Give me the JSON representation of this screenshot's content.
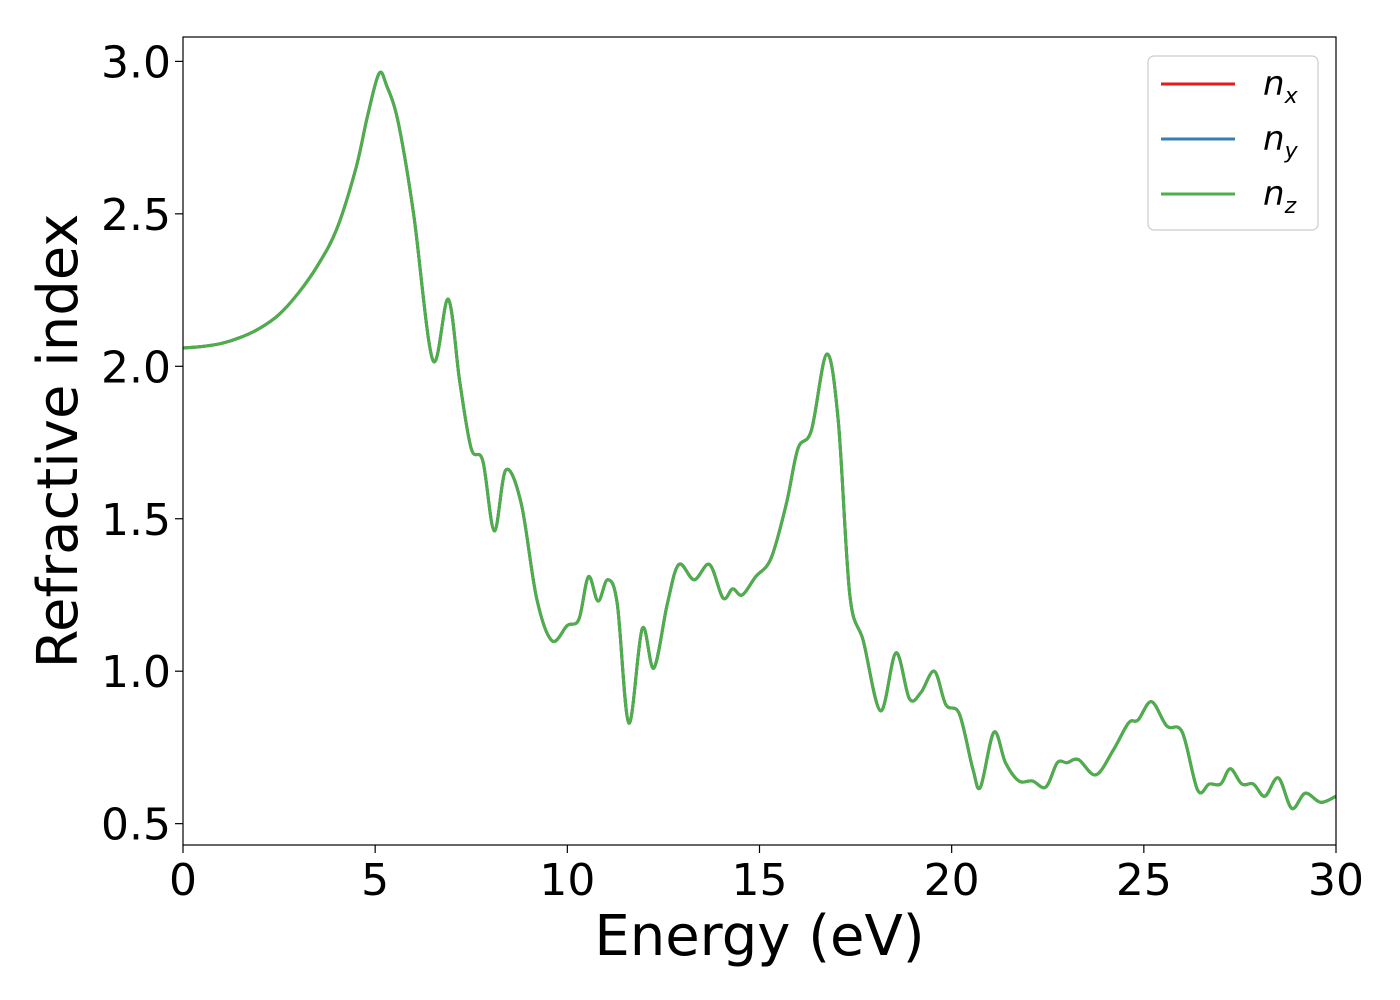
{
  "chart_data": {
    "type": "line",
    "title": "",
    "xlabel": "Energy (eV)",
    "ylabel": "Refractive index",
    "xlim": [
      0,
      30
    ],
    "ylim": [
      0.43,
      3.08
    ],
    "xticks": [
      0,
      5,
      10,
      15,
      20,
      25,
      30
    ],
    "xtick_labels": [
      "0",
      "5",
      "10",
      "15",
      "20",
      "25",
      "30"
    ],
    "yticks": [
      0.5,
      1.0,
      1.5,
      2.0,
      2.5,
      3.0
    ],
    "ytick_labels": [
      "0.5",
      "1.0",
      "1.5",
      "2.0",
      "2.5",
      "3.0"
    ],
    "grid": false,
    "legend_position": "top-right",
    "x": [
      0,
      0.5,
      1,
      1.5,
      2,
      2.5,
      3,
      3.5,
      4,
      4.5,
      4.8,
      5.1,
      5.3,
      5.6,
      6.0,
      6.5,
      6.9,
      7.2,
      7.5,
      7.8,
      8.1,
      8.4,
      8.8,
      9.2,
      9.6,
      10.0,
      10.3,
      10.55,
      10.8,
      11.05,
      11.3,
      11.6,
      11.95,
      12.25,
      12.6,
      12.9,
      13.3,
      13.7,
      14.05,
      14.3,
      14.55,
      14.9,
      15.3,
      15.7,
      16.0,
      16.35,
      16.75,
      17.05,
      17.35,
      17.7,
      18.15,
      18.55,
      18.9,
      19.2,
      19.55,
      19.85,
      20.2,
      20.55,
      20.75,
      21.1,
      21.4,
      21.75,
      22.1,
      22.45,
      22.75,
      23.0,
      23.3,
      23.75,
      24.2,
      24.6,
      24.85,
      25.2,
      25.6,
      26.0,
      26.4,
      26.7,
      27.0,
      27.25,
      27.55,
      27.85,
      28.15,
      28.5,
      28.85,
      29.2,
      29.6,
      30.0
    ],
    "series": [
      {
        "name": "n_x",
        "color": "#e41a1c",
        "values": [
          2.06,
          2.065,
          2.075,
          2.095,
          2.125,
          2.17,
          2.24,
          2.33,
          2.45,
          2.65,
          2.82,
          2.96,
          2.92,
          2.8,
          2.5,
          2.02,
          2.22,
          1.95,
          1.73,
          1.69,
          1.46,
          1.66,
          1.55,
          1.24,
          1.1,
          1.15,
          1.17,
          1.31,
          1.23,
          1.3,
          1.22,
          0.83,
          1.14,
          1.01,
          1.22,
          1.35,
          1.3,
          1.35,
          1.24,
          1.27,
          1.25,
          1.31,
          1.37,
          1.55,
          1.73,
          1.79,
          2.04,
          1.82,
          1.25,
          1.1,
          0.87,
          1.06,
          0.91,
          0.93,
          1.0,
          0.89,
          0.86,
          0.68,
          0.62,
          0.8,
          0.7,
          0.64,
          0.64,
          0.62,
          0.7,
          0.7,
          0.71,
          0.66,
          0.74,
          0.83,
          0.84,
          0.9,
          0.82,
          0.8,
          0.61,
          0.63,
          0.63,
          0.68,
          0.63,
          0.63,
          0.59,
          0.65,
          0.55,
          0.6,
          0.57,
          0.59
        ]
      },
      {
        "name": "n_y",
        "color": "#377eb8",
        "values": [
          2.06,
          2.065,
          2.075,
          2.095,
          2.125,
          2.17,
          2.24,
          2.33,
          2.45,
          2.65,
          2.82,
          2.96,
          2.92,
          2.8,
          2.5,
          2.02,
          2.22,
          1.95,
          1.73,
          1.69,
          1.46,
          1.66,
          1.55,
          1.24,
          1.1,
          1.15,
          1.17,
          1.31,
          1.23,
          1.3,
          1.22,
          0.83,
          1.14,
          1.01,
          1.22,
          1.35,
          1.3,
          1.35,
          1.24,
          1.27,
          1.25,
          1.31,
          1.37,
          1.55,
          1.73,
          1.79,
          2.04,
          1.82,
          1.25,
          1.1,
          0.87,
          1.06,
          0.91,
          0.93,
          1.0,
          0.89,
          0.86,
          0.68,
          0.62,
          0.8,
          0.7,
          0.64,
          0.64,
          0.62,
          0.7,
          0.7,
          0.71,
          0.66,
          0.74,
          0.83,
          0.84,
          0.9,
          0.82,
          0.8,
          0.61,
          0.63,
          0.63,
          0.68,
          0.63,
          0.63,
          0.59,
          0.65,
          0.55,
          0.6,
          0.57,
          0.59
        ]
      },
      {
        "name": "n_z",
        "color": "#4daf4a",
        "values": [
          2.06,
          2.065,
          2.075,
          2.095,
          2.125,
          2.17,
          2.24,
          2.33,
          2.45,
          2.65,
          2.82,
          2.96,
          2.92,
          2.8,
          2.5,
          2.02,
          2.22,
          1.95,
          1.73,
          1.69,
          1.46,
          1.66,
          1.55,
          1.24,
          1.1,
          1.15,
          1.17,
          1.31,
          1.23,
          1.3,
          1.22,
          0.83,
          1.14,
          1.01,
          1.22,
          1.35,
          1.3,
          1.35,
          1.24,
          1.27,
          1.25,
          1.31,
          1.37,
          1.55,
          1.73,
          1.79,
          2.04,
          1.82,
          1.25,
          1.1,
          0.87,
          1.06,
          0.91,
          0.93,
          1.0,
          0.89,
          0.86,
          0.68,
          0.62,
          0.8,
          0.7,
          0.64,
          0.64,
          0.62,
          0.7,
          0.7,
          0.71,
          0.66,
          0.74,
          0.83,
          0.84,
          0.9,
          0.82,
          0.8,
          0.61,
          0.63,
          0.63,
          0.68,
          0.63,
          0.63,
          0.59,
          0.65,
          0.55,
          0.6,
          0.57,
          0.59
        ]
      }
    ],
    "legend": [
      {
        "base": "n",
        "sub": "x",
        "color": "#e41a1c"
      },
      {
        "base": "n",
        "sub": "y",
        "color": "#377eb8"
      },
      {
        "base": "n",
        "sub": "z",
        "color": "#4daf4a"
      }
    ]
  }
}
